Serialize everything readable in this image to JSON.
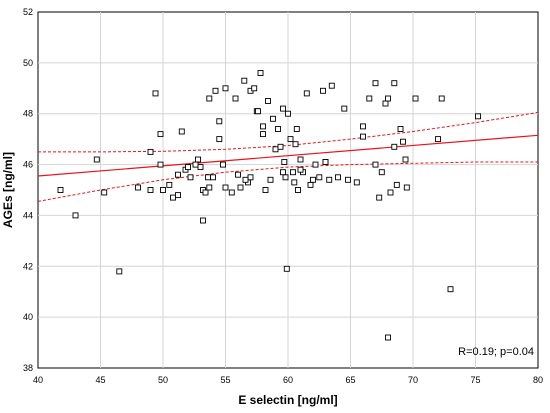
{
  "chart_data": {
    "type": "scatter",
    "title": "",
    "xlabel": "E selectin [ng/ml]",
    "ylabel": "AGEs [ng/ml]",
    "xlim": [
      40,
      80
    ],
    "ylim": [
      38,
      52
    ],
    "xticks": [
      40,
      45,
      50,
      55,
      60,
      65,
      70,
      75,
      80
    ],
    "yticks": [
      38,
      40,
      42,
      44,
      46,
      48,
      50,
      52
    ],
    "grid": true,
    "marker": "open-square",
    "marker_color": "#000000",
    "fit_line": {
      "x": [
        40,
        80
      ],
      "y": [
        45.55,
        47.15
      ],
      "color": "#e8141c"
    },
    "ci_upper": {
      "x": [
        40,
        45,
        50,
        55,
        60,
        65,
        70,
        75,
        80
      ],
      "y": [
        46.5,
        46.5,
        46.52,
        46.6,
        46.75,
        47.0,
        47.3,
        47.65,
        48.05
      ],
      "color": "#e8141c"
    },
    "ci_lower": {
      "x": [
        40,
        45,
        50,
        55,
        60,
        65,
        70,
        75,
        80
      ],
      "y": [
        44.55,
        45.0,
        45.4,
        45.7,
        45.9,
        46.0,
        46.05,
        46.1,
        46.1
      ],
      "color": "#e8141c"
    },
    "annotation": "R=0.19; p=0.04",
    "points": [
      [
        41.8,
        45.0
      ],
      [
        43.0,
        44.0
      ],
      [
        44.7,
        46.2
      ],
      [
        45.3,
        44.9
      ],
      [
        46.5,
        41.8
      ],
      [
        48.0,
        45.1
      ],
      [
        49.0,
        45.0
      ],
      [
        49.0,
        46.5
      ],
      [
        49.4,
        48.8
      ],
      [
        49.8,
        47.2
      ],
      [
        49.8,
        46.0
      ],
      [
        50.0,
        45.0
      ],
      [
        50.5,
        45.2
      ],
      [
        50.8,
        44.7
      ],
      [
        51.2,
        44.8
      ],
      [
        51.2,
        45.6
      ],
      [
        51.5,
        47.3
      ],
      [
        51.8,
        45.8
      ],
      [
        52.0,
        45.9
      ],
      [
        52.2,
        45.5
      ],
      [
        52.6,
        46.0
      ],
      [
        52.8,
        46.2
      ],
      [
        53.0,
        45.9
      ],
      [
        53.2,
        45.0
      ],
      [
        53.2,
        43.8
      ],
      [
        53.4,
        44.9
      ],
      [
        53.6,
        45.5
      ],
      [
        53.7,
        45.1
      ],
      [
        53.7,
        48.6
      ],
      [
        54.0,
        45.5
      ],
      [
        54.2,
        48.9
      ],
      [
        54.5,
        47.7
      ],
      [
        54.5,
        47.0
      ],
      [
        54.8,
        46.0
      ],
      [
        55.0,
        49.0
      ],
      [
        55.0,
        45.1
      ],
      [
        55.5,
        44.9
      ],
      [
        55.8,
        48.6
      ],
      [
        56.0,
        45.6
      ],
      [
        56.2,
        45.1
      ],
      [
        56.5,
        49.3
      ],
      [
        56.8,
        45.3
      ],
      [
        57.0,
        48.9
      ],
      [
        57.0,
        45.5
      ],
      [
        57.3,
        49.0
      ],
      [
        57.5,
        48.1
      ],
      [
        57.6,
        48.1
      ],
      [
        57.8,
        49.6
      ],
      [
        58.0,
        47.5
      ],
      [
        58.2,
        45.0
      ],
      [
        58.4,
        48.5
      ],
      [
        58.6,
        45.4
      ],
      [
        58.8,
        47.8
      ],
      [
        59.0,
        46.6
      ],
      [
        59.2,
        47.4
      ],
      [
        59.4,
        46.7
      ],
      [
        59.6,
        48.2
      ],
      [
        59.7,
        46.1
      ],
      [
        59.8,
        45.5
      ],
      [
        59.9,
        41.9
      ],
      [
        60.0,
        48.0
      ],
      [
        60.2,
        47.0
      ],
      [
        60.4,
        45.7
      ],
      [
        60.5,
        45.3
      ],
      [
        60.6,
        46.8
      ],
      [
        60.7,
        47.4
      ],
      [
        60.8,
        45.0
      ],
      [
        61.0,
        46.2
      ],
      [
        61.2,
        45.7
      ],
      [
        61.5,
        48.8
      ],
      [
        61.8,
        45.2
      ],
      [
        62.0,
        45.4
      ],
      [
        62.2,
        46.0
      ],
      [
        62.5,
        45.5
      ],
      [
        62.8,
        48.9
      ],
      [
        63.0,
        46.1
      ],
      [
        63.3,
        45.4
      ],
      [
        63.5,
        49.1
      ],
      [
        64.0,
        45.5
      ],
      [
        64.5,
        48.2
      ],
      [
        64.8,
        45.4
      ],
      [
        65.5,
        45.3
      ],
      [
        66.0,
        47.5
      ],
      [
        66.0,
        47.1
      ],
      [
        66.5,
        48.6
      ],
      [
        67.0,
        49.2
      ],
      [
        67.0,
        46.0
      ],
      [
        67.3,
        44.7
      ],
      [
        67.5,
        45.7
      ],
      [
        67.8,
        48.4
      ],
      [
        68.0,
        48.6
      ],
      [
        68.0,
        39.2
      ],
      [
        68.2,
        44.9
      ],
      [
        68.5,
        49.2
      ],
      [
        68.5,
        46.7
      ],
      [
        68.7,
        45.2
      ],
      [
        69.0,
        47.4
      ],
      [
        69.2,
        46.9
      ],
      [
        69.4,
        46.2
      ],
      [
        69.5,
        45.1
      ],
      [
        70.2,
        48.6
      ],
      [
        72.0,
        47.0
      ],
      [
        72.3,
        48.6
      ],
      [
        73.0,
        41.1
      ],
      [
        75.2,
        47.9
      ],
      [
        63.0,
        46.1
      ],
      [
        58.0,
        47.2
      ],
      [
        59.6,
        45.7
      ],
      [
        61.0,
        45.8
      ],
      [
        56.6,
        45.4
      ]
    ]
  }
}
